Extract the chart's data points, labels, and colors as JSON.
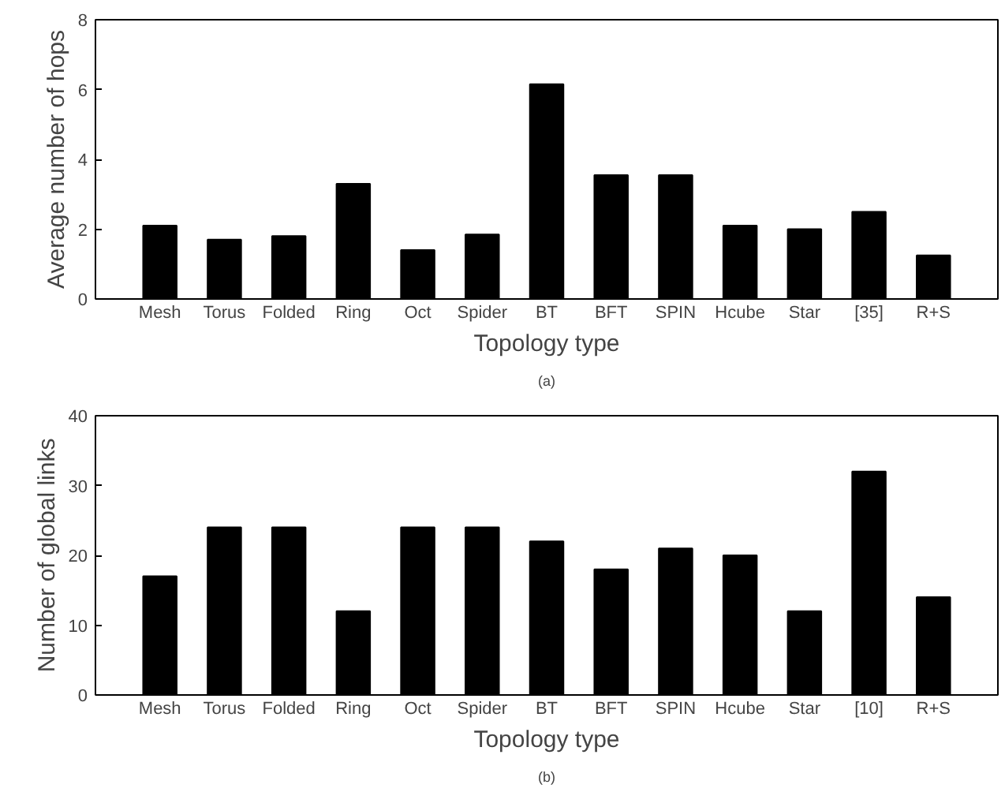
{
  "chart_data": [
    {
      "type": "bar",
      "xlabel": "Topology type",
      "ylabel": "Average number of hops",
      "categories": [
        "Mesh",
        "Torus",
        "Folded",
        "Ring",
        "Oct",
        "Spider",
        "BT",
        "BFT",
        "SPIN",
        "Hcube",
        "Star",
        "[35]",
        "R+S"
      ],
      "values": [
        2.1,
        1.7,
        1.8,
        3.3,
        1.4,
        1.85,
        6.15,
        3.55,
        3.55,
        2.1,
        2.0,
        2.5,
        1.25
      ],
      "color": "#000000",
      "ylim": [
        0,
        8
      ],
      "yticks": [
        0,
        2,
        4,
        6,
        8
      ],
      "grid": false,
      "annotations": [
        "(a)"
      ]
    },
    {
      "type": "bar",
      "xlabel": "Topology type",
      "ylabel": "Number of global links",
      "categories": [
        "Mesh",
        "Torus",
        "Folded",
        "Ring",
        "Oct",
        "Spider",
        "BT",
        "BFT",
        "SPIN",
        "Hcube",
        "Star",
        "[10]",
        "R+S"
      ],
      "values": [
        17,
        24,
        24,
        12,
        24,
        24,
        22,
        18,
        21,
        20,
        12,
        32,
        14
      ],
      "color": "#000000",
      "ylim": [
        0,
        40
      ],
      "yticks": [
        0,
        10,
        20,
        30,
        40
      ],
      "grid": false,
      "annotations": [
        "(b)"
      ]
    }
  ]
}
